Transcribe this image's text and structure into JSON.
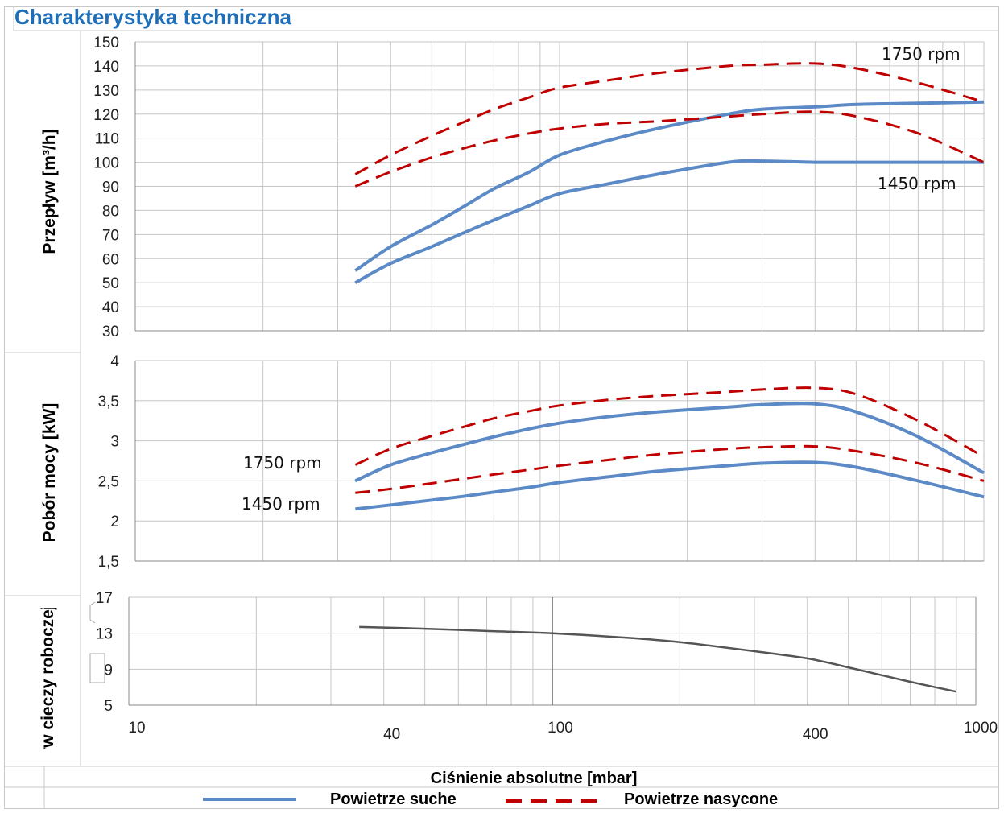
{
  "title": "Charakterystyka techniczna",
  "xlabel": "Ciśnienie absolutne [mbar]",
  "legend": {
    "dry": "Powietrze suche",
    "saturated": "Powietrze nasycone"
  },
  "colors": {
    "dry": "#5b8ac6",
    "saturated": "#c00000",
    "fluid": "#555555",
    "title": "#1f6fb8"
  },
  "chart_data": [
    {
      "type": "line",
      "name": "flow",
      "ylabel": "Przepływ [m³/h]",
      "ylim": [
        30,
        150
      ],
      "yticks": [
        "30",
        "40",
        "50",
        "60",
        "70",
        "80",
        "90",
        "100",
        "110",
        "120",
        "130",
        "140",
        "150"
      ],
      "xscale": "log",
      "xlim": [
        10,
        1000
      ],
      "annotations": [
        "1750 rpm",
        "1450 rpm"
      ],
      "series": [
        {
          "name": "Powietrze suche 1750 rpm",
          "style": "dry",
          "x": [
            33,
            40,
            50,
            60,
            70,
            85,
            100,
            130,
            170,
            250,
            300,
            400,
            500,
            700,
            1000
          ],
          "y": [
            55,
            65,
            74,
            82,
            89,
            96,
            103,
            109,
            114,
            120,
            122,
            123,
            124,
            124.5,
            125
          ]
        },
        {
          "name": "Powietrze suche 1450 rpm",
          "style": "dry",
          "x": [
            33,
            40,
            50,
            60,
            70,
            85,
            100,
            130,
            170,
            250,
            300,
            400,
            500,
            700,
            1000
          ],
          "y": [
            50,
            58,
            65,
            71,
            76,
            82,
            87,
            91,
            95,
            100,
            100.5,
            100,
            100,
            100,
            100
          ]
        },
        {
          "name": "Powietrze nasycone 1750 rpm",
          "style": "saturated",
          "x": [
            33,
            40,
            50,
            60,
            70,
            85,
            100,
            130,
            170,
            250,
            300,
            400,
            500,
            700,
            1000
          ],
          "y": [
            95,
            103,
            111,
            117,
            122,
            127,
            131,
            134,
            137,
            140,
            140.5,
            141,
            139,
            133,
            125
          ]
        },
        {
          "name": "Powietrze nasycone 1450 rpm",
          "style": "saturated",
          "x": [
            33,
            40,
            50,
            60,
            70,
            85,
            100,
            130,
            170,
            250,
            300,
            400,
            500,
            700,
            1000
          ],
          "y": [
            90,
            96,
            102,
            106,
            109,
            112,
            114,
            116,
            117,
            119,
            120,
            121,
            119,
            112,
            100
          ]
        }
      ]
    },
    {
      "type": "line",
      "name": "power",
      "ylabel": "Pobór mocy [kW]",
      "ylim": [
        1.5,
        4
      ],
      "yticks": [
        "1,5",
        "2",
        "2,5",
        "3",
        "3,5",
        "4"
      ],
      "xscale": "log",
      "xlim": [
        10,
        1000
      ],
      "annotations": [
        "1750 rpm",
        "1450 rpm"
      ],
      "series": [
        {
          "name": "Powietrze suche 1750 rpm",
          "style": "dry",
          "x": [
            33,
            40,
            50,
            60,
            70,
            85,
            100,
            130,
            170,
            250,
            300,
            400,
            500,
            700,
            1000
          ],
          "y": [
            2.5,
            2.7,
            2.85,
            2.96,
            3.05,
            3.15,
            3.22,
            3.3,
            3.36,
            3.42,
            3.45,
            3.46,
            3.36,
            3.05,
            2.6
          ]
        },
        {
          "name": "Powietrze suche 1450 rpm",
          "style": "dry",
          "x": [
            33,
            40,
            50,
            60,
            70,
            85,
            100,
            130,
            170,
            250,
            300,
            400,
            500,
            700,
            1000
          ],
          "y": [
            2.15,
            2.2,
            2.26,
            2.31,
            2.36,
            2.42,
            2.48,
            2.55,
            2.62,
            2.69,
            2.72,
            2.73,
            2.67,
            2.5,
            2.3
          ]
        },
        {
          "name": "Powietrze nasycone 1750 rpm",
          "style": "saturated",
          "x": [
            33,
            40,
            50,
            60,
            70,
            85,
            100,
            130,
            170,
            250,
            300,
            400,
            500,
            700,
            1000
          ],
          "y": [
            2.7,
            2.9,
            3.06,
            3.18,
            3.28,
            3.37,
            3.44,
            3.51,
            3.56,
            3.61,
            3.64,
            3.66,
            3.58,
            3.25,
            2.8
          ]
        },
        {
          "name": "Powietrze nasycone 1450 rpm",
          "style": "saturated",
          "x": [
            33,
            40,
            50,
            60,
            70,
            85,
            100,
            130,
            170,
            250,
            300,
            400,
            500,
            700,
            1000
          ],
          "y": [
            2.35,
            2.4,
            2.47,
            2.53,
            2.58,
            2.64,
            2.69,
            2.76,
            2.83,
            2.9,
            2.92,
            2.93,
            2.87,
            2.72,
            2.5
          ]
        }
      ]
    },
    {
      "type": "line",
      "name": "fluid",
      "ylabel": "Przepływ cieczy roboczej [l/min]",
      "ylim": [
        5,
        17
      ],
      "yticks": [
        "5",
        "9",
        "13",
        "17"
      ],
      "xscale": "log",
      "xlim": [
        10,
        1000
      ],
      "xticks": [
        "10",
        "40",
        "100",
        "400",
        "1000"
      ],
      "series": [
        {
          "name": "Przepływ cieczy roboczej",
          "style": "fluid",
          "x": [
            35,
            50,
            70,
            100,
            150,
            200,
            300,
            400,
            500,
            700,
            900
          ],
          "y": [
            13.7,
            13.5,
            13.25,
            13.0,
            12.5,
            12.0,
            11.0,
            10.2,
            9.2,
            7.6,
            6.5
          ]
        }
      ]
    }
  ]
}
